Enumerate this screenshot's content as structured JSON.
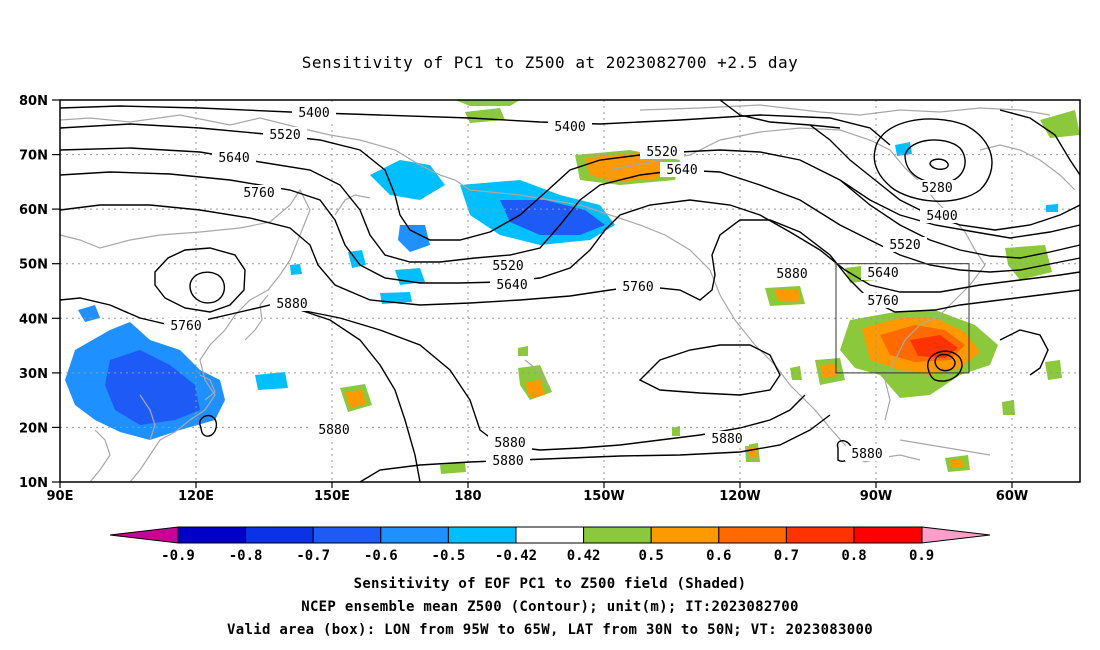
{
  "title": "Sensitivity of PC1 to Z500 at 2023082700 +2.5 day",
  "lat_labels": [
    "80N",
    "70N",
    "60N",
    "50N",
    "40N",
    "30N",
    "20N",
    "10N"
  ],
  "lon_labels": [
    "90E",
    "120E",
    "150E",
    "180",
    "150W",
    "120W",
    "90W",
    "60W"
  ],
  "contour_labels": {
    "c5400a": "5400",
    "c5400b": "5400",
    "c5520a": "5520",
    "c5640a": "5640",
    "c5760a": "5760",
    "c5520b": "5520",
    "c5640b": "5640",
    "c5280": "5280",
    "c5400c": "5400",
    "c5520c": "5520",
    "c5640c": "5640",
    "c5760b": "5760",
    "c5520d": "5520",
    "c5640d": "5640",
    "c5760c": "5760",
    "c5880a": "5880",
    "c5880b": "5880",
    "c5760d": "5760",
    "c5880c": "5880",
    "c5880d": "5880",
    "c5880e": "5880",
    "c5880f": "5880",
    "c5880g": "5880"
  },
  "colorbar": {
    "labels": [
      "-0.9",
      "-0.8",
      "-0.7",
      "-0.6",
      "-0.5",
      "-0.42",
      "0.42",
      "0.5",
      "0.6",
      "0.7",
      "0.8",
      "0.9"
    ],
    "colors": [
      "#0000c8",
      "#0a32e6",
      "#1e5af5",
      "#1e90ff",
      "#00bfff",
      "#ffffff",
      "#8cc83c",
      "#ff9900",
      "#ff6a00",
      "#ff3300",
      "#ff0000"
    ],
    "left_arrow_color": "#c80096",
    "right_arrow_color": "#ff9ec8"
  },
  "captions": {
    "line1": "Sensitivity of EOF PC1 to Z500 field (Shaded)",
    "line2": "NCEP ensemble mean Z500 (Contour); unit(m); IT:2023082700",
    "line3": "Valid area (box): LON from 95W to 65W, LAT from 30N to 50N; VT: 2023083000"
  }
}
